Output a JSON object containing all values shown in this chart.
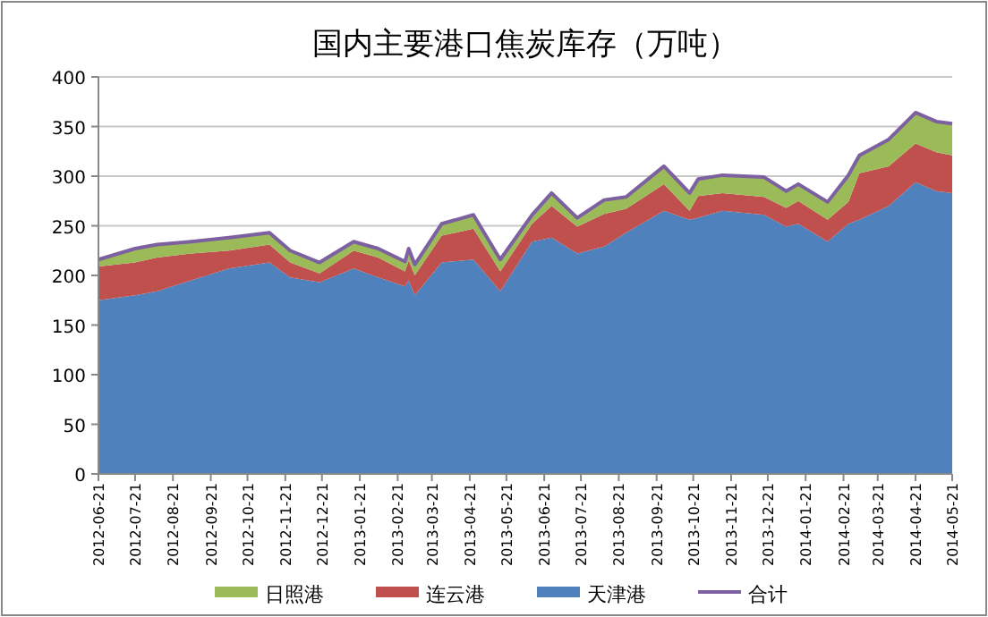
{
  "chart_data": {
    "type": "area",
    "title": "国内主要港口焦炭库存（万吨）",
    "stacked": true,
    "grid": "y",
    "legend": "bottom",
    "x": [
      "2012-06-21",
      "2012-07-21",
      "2012-08-08",
      "2012-09-05",
      "2012-10-06",
      "2012-11-08",
      "2012-11-25",
      "2012-12-19",
      "2013-01-16",
      "2013-02-05",
      "2013-02-27",
      "2013-03-02",
      "2013-03-07",
      "2013-03-29",
      "2013-04-24",
      "2013-05-16",
      "2013-06-11",
      "2013-06-27",
      "2013-07-18",
      "2013-08-09",
      "2013-08-27",
      "2013-09-27",
      "2013-10-18",
      "2013-10-25",
      "2013-11-14",
      "2013-12-18",
      "2014-01-05",
      "2014-01-15",
      "2014-02-08",
      "2014-02-25",
      "2014-03-06",
      "2014-03-30",
      "2014-04-21",
      "2014-05-08",
      "2014-05-21"
    ],
    "series": [
      {
        "name": "天津港",
        "color": "#4f81bd",
        "values": [
          175,
          180,
          184,
          195,
          207,
          213,
          198,
          193,
          207,
          198,
          189,
          195,
          180,
          213,
          216,
          184,
          234,
          238,
          222,
          229,
          243,
          265,
          256,
          258,
          265,
          261,
          249,
          252,
          234,
          252,
          256,
          270,
          294,
          285,
          283
        ]
      },
      {
        "name": "连云港",
        "color": "#c0504d",
        "values": [
          34,
          33,
          34,
          27,
          18,
          18,
          15,
          9,
          18,
          20,
          15,
          20,
          20,
          27,
          31,
          20,
          18,
          32,
          27,
          33,
          24,
          27,
          9,
          22,
          18,
          18,
          19,
          23,
          22,
          22,
          47,
          40,
          39,
          39,
          38
        ]
      },
      {
        "name": "日照港",
        "color": "#9bbb59",
        "values": [
          7,
          14,
          13,
          12,
          13,
          12,
          12,
          11,
          9,
          9,
          10,
          12,
          11,
          12,
          14,
          12,
          9,
          13,
          9,
          14,
          12,
          18,
          18,
          17,
          18,
          20,
          17,
          17,
          18,
          27,
          18,
          27,
          31,
          31,
          32
        ]
      },
      {
        "name": "合计",
        "type": "line",
        "color": "#7d60a0",
        "values": [
          216,
          227,
          231,
          234,
          238,
          243,
          225,
          213,
          234,
          227,
          214,
          227,
          211,
          252,
          261,
          216,
          261,
          283,
          258,
          276,
          279,
          310,
          283,
          297,
          301,
          299,
          285,
          292,
          274,
          301,
          321,
          337,
          364,
          355,
          353
        ]
      }
    ],
    "ylim": [
      0,
      400
    ],
    "yticks": [
      0,
      50,
      100,
      150,
      200,
      250,
      300,
      350,
      400
    ],
    "xlim": [
      "2012-06-21",
      "2014-05-21"
    ],
    "xticks": [
      "2012-06-21",
      "2012-07-21",
      "2012-08-21",
      "2012-09-21",
      "2012-10-21",
      "2012-11-21",
      "2012-12-21",
      "2013-01-21",
      "2013-02-21",
      "2013-03-21",
      "2013-04-21",
      "2013-05-21",
      "2013-06-21",
      "2013-07-21",
      "2013-08-21",
      "2013-09-21",
      "2013-10-21",
      "2013-11-21",
      "2013-12-21",
      "2014-01-21",
      "2014-02-21",
      "2014-03-21",
      "2014-04-21",
      "2014-05-21"
    ]
  }
}
